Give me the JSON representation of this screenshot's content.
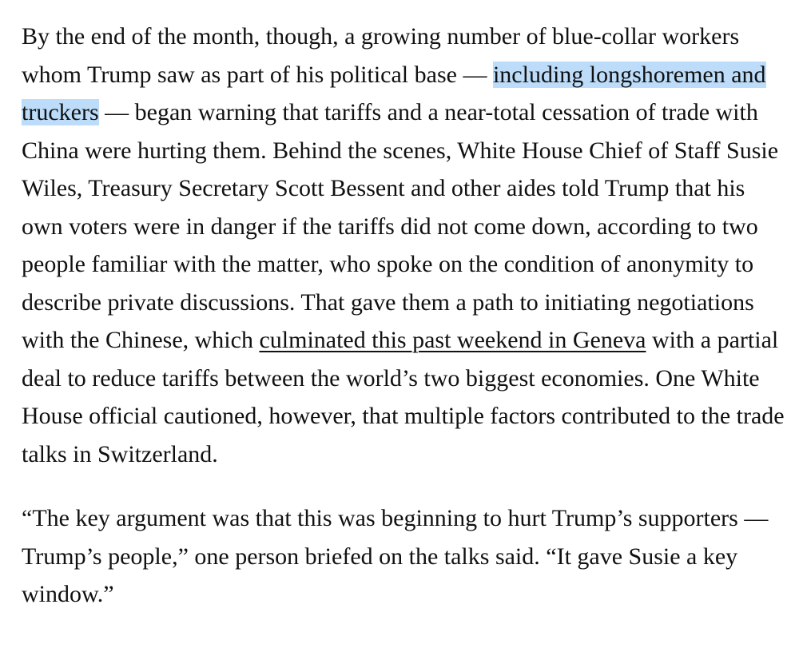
{
  "article": {
    "paragraph1": {
      "text_before_highlight": "By the end of the month, though, a growing number of blue-collar workers whom Trump saw as part of his political base — ",
      "highlighted_text": "including longshoremen and truckers",
      "text_after_highlight": " — began warning that tariffs and a near-total cessation of trade with China were hurting them. Behind the scenes, White House Chief of Staff Susie Wiles, Treasury Secretary Scott Bessent and other aides told Trump that his own voters were in danger if the tariffs did not come down, according to two people familiar with the matter, who spoke on the condition of anonymity to describe private discussions. That gave them a path to initiating negotiations with the Chinese, which ",
      "link_text": "culminated this past weekend in Geneva",
      "text_after_link": " with a partial deal to reduce tariffs between the world’s two biggest economies. One White House official cautioned, however, that multiple factors contributed to the trade talks in Switzerland."
    },
    "paragraph2": {
      "text": "“The key argument was that this was beginning to hurt Trump’s supporters — Trump’s people,” one person briefed on the talks said. “It gave Susie a key window.”"
    },
    "colors": {
      "highlight": "#bcdcf9",
      "text": "#111111",
      "background": "#ffffff"
    }
  }
}
